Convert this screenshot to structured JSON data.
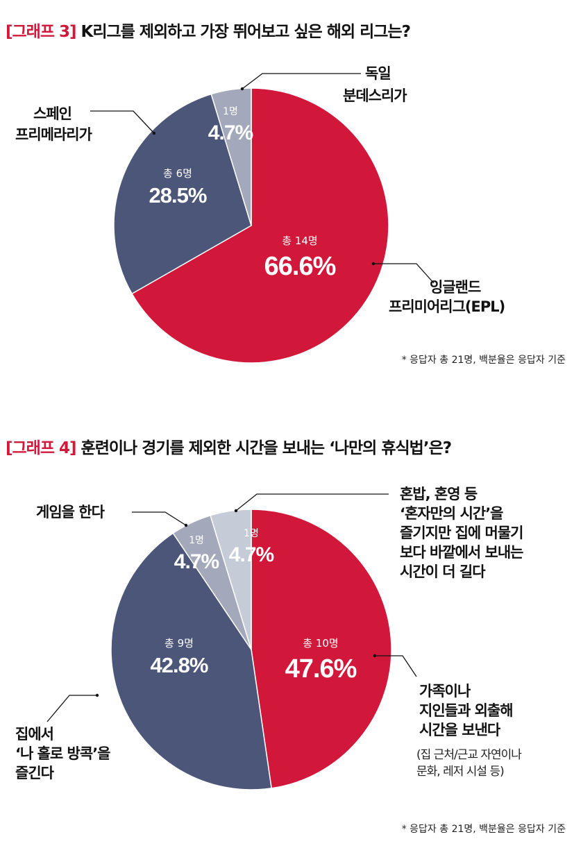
{
  "charts": [
    {
      "title_tag": "[그래프 3]",
      "title_text": "K리그를 제외하고 가장 뛰어보고 싶은 해외 리그는?",
      "note": "* 응답자 총 21명, 백분율은 응답자 기준",
      "labels": {
        "epl_line1": "잉글랜드",
        "epl_line2": "프리미어리그(EPL)",
        "spain_line1": "스페인",
        "spain_line2": "프리메라리가",
        "germany_line1": "독일",
        "germany_line2": "분데스리가"
      }
    },
    {
      "title_tag": "[그래프 4]",
      "title_text": "훈련이나 경기를 제외한 시간을 보내는 ‘나만의 휴식법’은?",
      "note": "* 응답자 총 21명, 백분율은 응답자 기준",
      "labels": {
        "family_line1": "가족이나",
        "family_line2": "지인들과 외출해",
        "family_line3": "시간을 보낸다",
        "family_sub1": "(집 근처/근교 자연이나",
        "family_sub2": "문화, 레저 시설 등)",
        "home_line1": "집에서",
        "home_line2": "‘나 홀로 방콕’을",
        "home_line3": "즐긴다",
        "game_line1": "게임을 한다",
        "alone_line1": "혼밥, 혼영 등",
        "alone_line2": "‘혼자만의 시간’을",
        "alone_line3": "즐기지만 집에 머물기",
        "alone_line4": "보다 바깥에서 보내는",
        "alone_line5": "시간이 더 길다"
      }
    }
  ],
  "chart_data": [
    {
      "type": "pie",
      "title": "[그래프 3] K리그를 제외하고 가장 뛰어보고 싶은 해외 리그는?",
      "categories": [
        "잉글랜드 프리미어리그(EPL)",
        "스페인 프리메라리가",
        "독일 분데스리가"
      ],
      "values": [
        66.6,
        28.5,
        4.7
      ],
      "counts": [
        "총 14명",
        "총 6명",
        "1명"
      ],
      "percent_labels": [
        "66.6%",
        "28.5%",
        "4.7%"
      ],
      "colors": [
        "#d1183a",
        "#4c5678",
        "#a3a9bb"
      ]
    },
    {
      "type": "pie",
      "title": "[그래프 4] 훈련이나 경기를 제외한 시간을 보내는 ‘나만의 휴식법’은?",
      "categories": [
        "가족이나 지인들과 외출해 시간을 보낸다",
        "집에서 ‘나 홀로 방콕’을 즐긴다",
        "게임을 한다",
        "혼밥, 혼영 등 ‘혼자만의 시간’을 즐기지만 집에 머물기 보다 바깥에서 보내는 시간이 더 길다"
      ],
      "values": [
        47.6,
        42.8,
        4.7,
        4.7
      ],
      "counts": [
        "총 10명",
        "총 9명",
        "1명",
        "1명"
      ],
      "percent_labels": [
        "47.6%",
        "42.8%",
        "4.7%",
        "4.7%"
      ],
      "colors": [
        "#d1183a",
        "#4c5678",
        "#a3a9bb",
        "#c6cbd8"
      ]
    }
  ]
}
